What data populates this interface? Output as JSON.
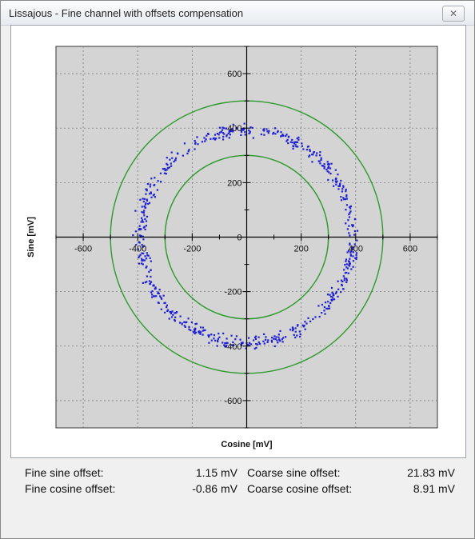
{
  "window": {
    "title": "Lissajous - Fine channel with offsets compensation",
    "close_glyph": "✕",
    "close_icon": "close-icon"
  },
  "chart_data": {
    "type": "scatter",
    "xlabel": "Cosine [mV]",
    "ylabel": "Sine [mV]",
    "xlim": [
      -700,
      700
    ],
    "ylim": [
      -700,
      700
    ],
    "xticks": [
      -600,
      -400,
      -200,
      0,
      200,
      400,
      600
    ],
    "yticks": [
      600,
      400,
      200,
      0,
      -200,
      -400,
      -600
    ],
    "grid": true,
    "background_color": "#d4d4d4",
    "point_color": "#1f1fd6",
    "reference_circle_color": "#2e9a2e",
    "reference_circles_radius": [
      300,
      500
    ],
    "data_ring": {
      "center_x": -0.86,
      "center_y": 1.15,
      "mean_radius": 390,
      "spread": 22
    }
  },
  "offsets": {
    "fine_sine": {
      "label": "Fine sine offset:",
      "value": "1.15 mV"
    },
    "fine_cosine": {
      "label": "Fine cosine offset:",
      "value": "-0.86 mV"
    },
    "coarse_sine": {
      "label": "Coarse sine offset:",
      "value": "21.83 mV"
    },
    "coarse_cosine": {
      "label": "Coarse cosine offset:",
      "value": "8.91 mV"
    }
  }
}
